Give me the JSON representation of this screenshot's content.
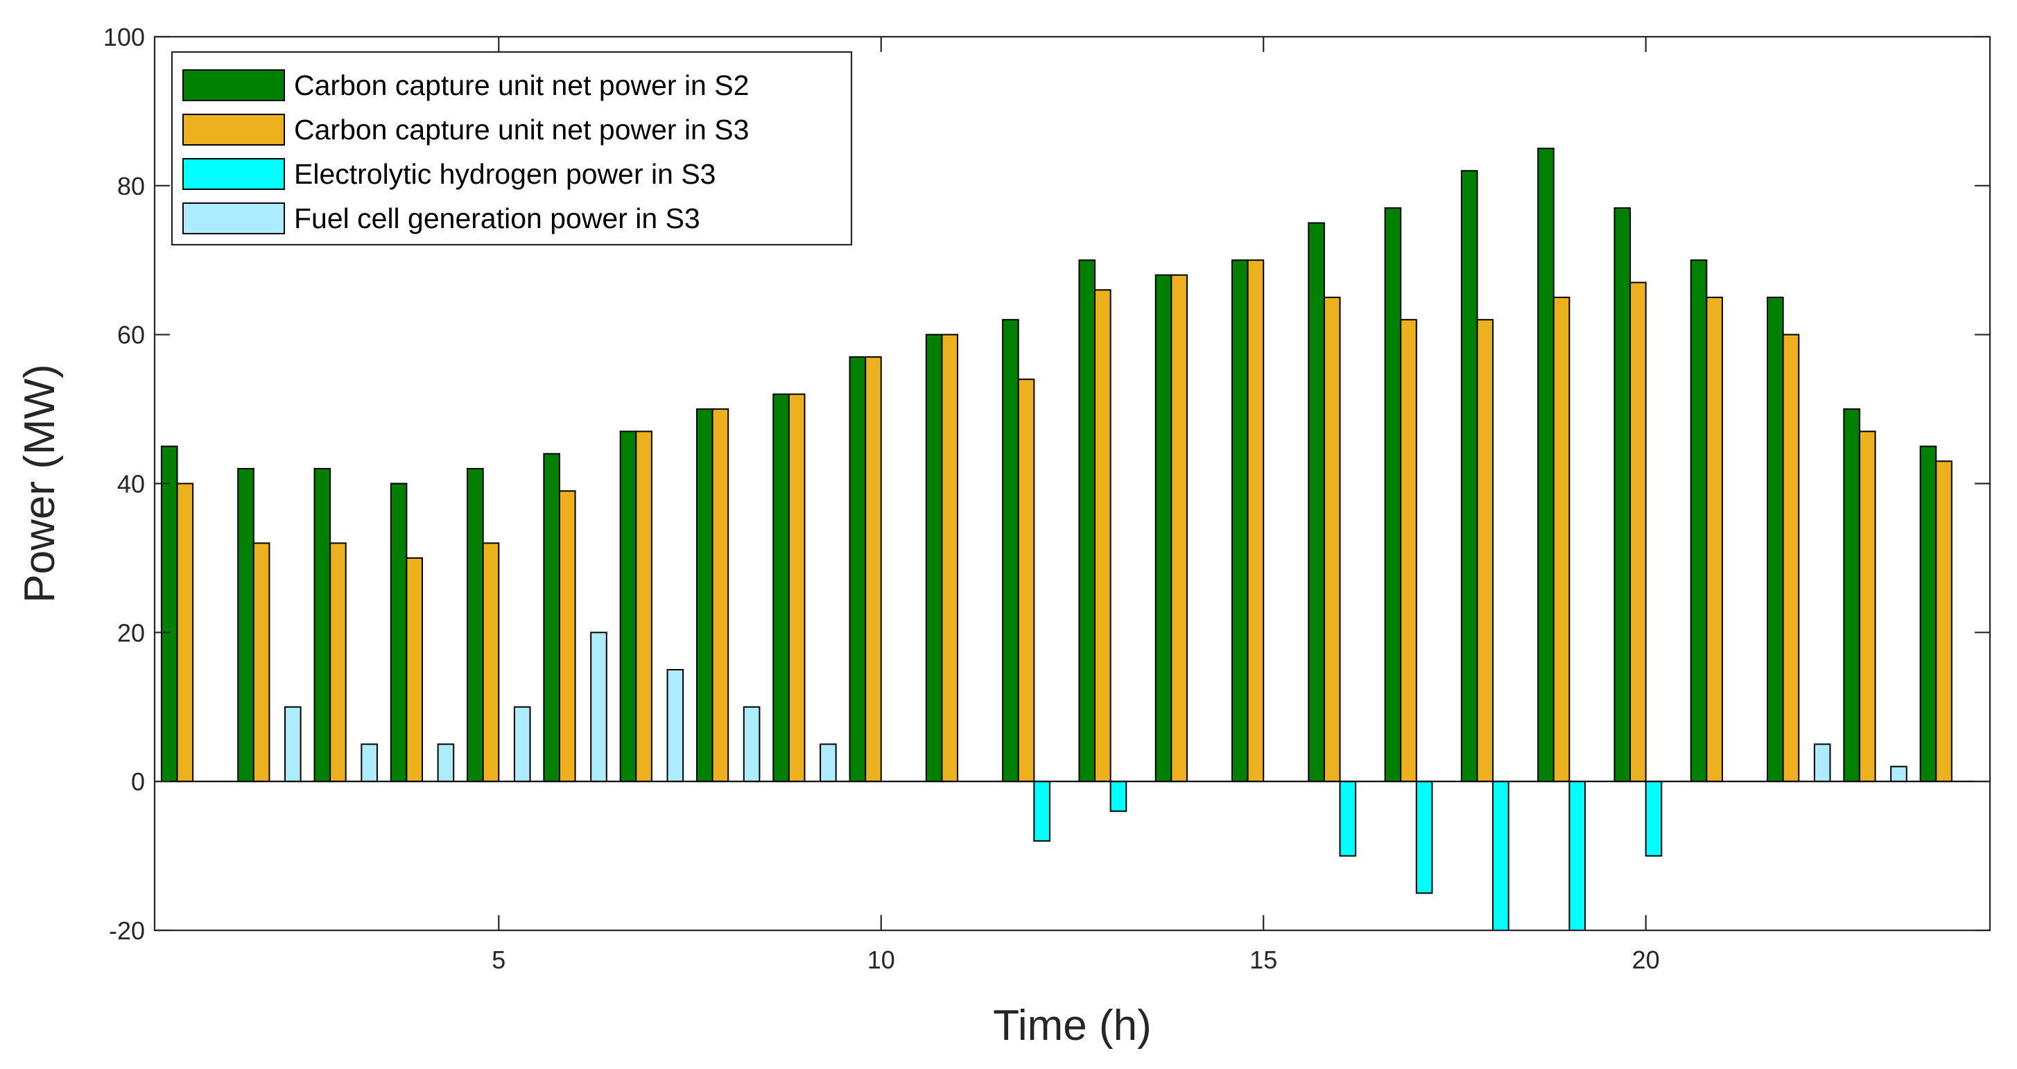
{
  "chart_data": {
    "type": "bar",
    "title": "",
    "xlabel": "Time (h)",
    "ylabel": "Power (MW)",
    "ylim": [
      -20,
      100
    ],
    "xlim": [
      0.5,
      24.5
    ],
    "x": [
      1,
      2,
      3,
      4,
      5,
      6,
      7,
      8,
      9,
      10,
      11,
      12,
      13,
      14,
      15,
      16,
      17,
      18,
      19,
      20,
      21,
      22,
      23,
      24
    ],
    "xticks": [
      5,
      10,
      15,
      20
    ],
    "yticks": [
      -20,
      0,
      20,
      40,
      60,
      80,
      100
    ],
    "legend_position": "top-left",
    "series": [
      {
        "name": "Carbon capture unit net power in S2",
        "color": "#008000",
        "values": [
          45,
          42,
          42,
          40,
          42,
          44,
          47,
          50,
          52,
          57,
          60,
          62,
          70,
          68,
          70,
          75,
          77,
          82,
          85,
          77,
          70,
          65,
          50,
          45
        ]
      },
      {
        "name": "Carbon capture unit net power in S3",
        "color": "#EDB120",
        "values": [
          40,
          32,
          32,
          30,
          32,
          39,
          47,
          50,
          52,
          57,
          60,
          54,
          66,
          68,
          70,
          65,
          62,
          62,
          65,
          67,
          65,
          60,
          47,
          43
        ]
      },
      {
        "name": "Electrolytic hydrogen power in S3",
        "color": "#00FFFF",
        "values": [
          0,
          0,
          0,
          0,
          0,
          0,
          0,
          0,
          0,
          0,
          0,
          -8,
          -4,
          0,
          0,
          -10,
          -15,
          -20,
          -20,
          -10,
          0,
          0,
          0,
          0
        ]
      },
      {
        "name": "Fuel cell generation power in S3",
        "color": "#ADEBFF",
        "values": [
          0,
          10,
          5,
          5,
          10,
          20,
          15,
          10,
          5,
          0,
          0,
          0,
          0,
          0,
          0,
          0,
          0,
          0,
          0,
          0,
          0,
          5,
          2,
          0
        ]
      }
    ]
  }
}
